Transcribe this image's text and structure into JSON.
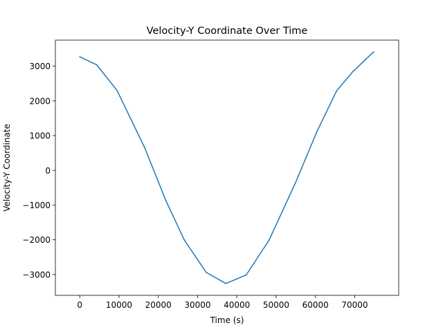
{
  "chart_data": {
    "type": "line",
    "title": "Velocity-Y Coordinate Over Time",
    "xlabel": "Time (s)",
    "ylabel": "Velocity-Y Coordinate",
    "xlim": [
      -6200,
      81200
    ],
    "ylim": [
      -3600,
      3750
    ],
    "xticks": [
      0,
      10000,
      20000,
      30000,
      40000,
      50000,
      60000,
      70000
    ],
    "xtick_labels": [
      "0",
      "10000",
      "20000",
      "30000",
      "40000",
      "50000",
      "60000",
      "70000"
    ],
    "yticks": [
      3000,
      2000,
      1000,
      0,
      -1000,
      -2000,
      -3000
    ],
    "ytick_labels": [
      "3000",
      "2000",
      "1000",
      "0",
      "−1000",
      "−2000",
      "−3000"
    ],
    "grid": false,
    "series": [
      {
        "color": "#1f77b4",
        "x": [
          0,
          4300,
          9500,
          16500,
          22000,
          26600,
          32200,
          37200,
          42400,
          48200,
          54800,
          60400,
          65400,
          69600,
          74800
        ],
        "y": [
          3270,
          3040,
          2300,
          660,
          -890,
          -2000,
          -2940,
          -3260,
          -3010,
          -2010,
          -390,
          1120,
          2290,
          2850,
          3410
        ]
      }
    ]
  }
}
